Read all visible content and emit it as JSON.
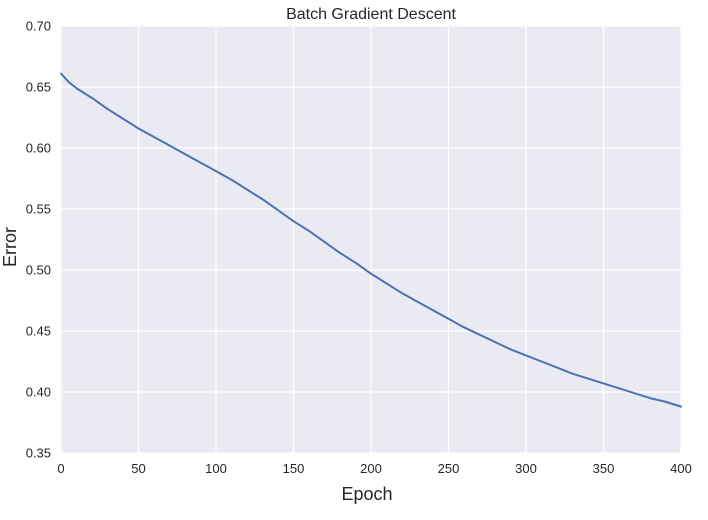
{
  "chart_data": {
    "type": "line",
    "title": "Batch Gradient Descent",
    "xlabel": "Epoch",
    "ylabel": "Error",
    "xlim": [
      0,
      400
    ],
    "ylim": [
      0.35,
      0.7
    ],
    "xticks": [
      "0",
      "50",
      "100",
      "150",
      "200",
      "250",
      "300",
      "350",
      "400"
    ],
    "yticks": [
      "0.35",
      "0.40",
      "0.45",
      "0.50",
      "0.55",
      "0.60",
      "0.65",
      "0.70"
    ],
    "grid": true,
    "background_color": "#EAEAF2",
    "grid_color": "#FFFFFF",
    "series": [
      {
        "color": "#4C72B0",
        "x": [
          0,
          5,
          10,
          20,
          30,
          40,
          50,
          60,
          70,
          80,
          90,
          100,
          110,
          120,
          130,
          140,
          150,
          160,
          170,
          180,
          190,
          200,
          210,
          220,
          230,
          240,
          250,
          260,
          270,
          280,
          290,
          300,
          310,
          320,
          330,
          340,
          350,
          360,
          370,
          380,
          390,
          400
        ],
        "y": [
          0.661,
          0.654,
          0.649,
          0.641,
          0.632,
          0.624,
          0.616,
          0.609,
          0.602,
          0.595,
          0.588,
          0.581,
          0.574,
          0.566,
          0.558,
          0.549,
          0.54,
          0.532,
          0.523,
          0.514,
          0.506,
          0.497,
          0.489,
          0.481,
          0.474,
          0.467,
          0.46,
          0.453,
          0.447,
          0.441,
          0.435,
          0.43,
          0.425,
          0.42,
          0.415,
          0.411,
          0.407,
          0.403,
          0.399,
          0.395,
          0.392,
          0.388
        ]
      }
    ]
  }
}
